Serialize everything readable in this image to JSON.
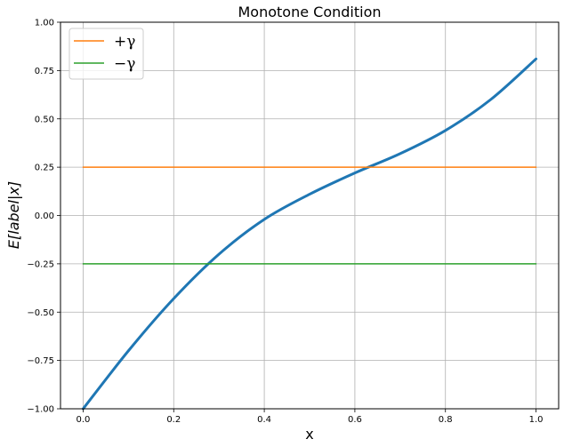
{
  "chart_data": {
    "type": "line",
    "title": "Monotone Condition",
    "xlabel": "x",
    "ylabel": "E[label|x]",
    "xlim": [
      -0.05,
      1.05
    ],
    "ylim": [
      -1.0,
      1.0
    ],
    "xticks": [
      0.0,
      0.2,
      0.4,
      0.6,
      0.8,
      1.0
    ],
    "xtick_labels": [
      "0.0",
      "0.2",
      "0.4",
      "0.6",
      "0.8",
      "1.0"
    ],
    "yticks": [
      -1.0,
      -0.75,
      -0.5,
      -0.25,
      0.0,
      0.25,
      0.5,
      0.75,
      1.0
    ],
    "ytick_labels": [
      "−1.00",
      "−0.75",
      "−0.50",
      "−0.25",
      "0.00",
      "0.25",
      "0.50",
      "0.75",
      "1.00"
    ],
    "grid": true,
    "legend_position": "top-left",
    "series": [
      {
        "color": "#1f77b4",
        "x": [
          0.0,
          0.1,
          0.2,
          0.3,
          0.4,
          0.5,
          0.6,
          0.7,
          0.8,
          0.9,
          1.0
        ],
        "y": [
          -1.0,
          -0.7,
          -0.43,
          -0.2,
          -0.02,
          0.11,
          0.22,
          0.32,
          0.44,
          0.6,
          0.81
        ]
      },
      {
        "name": "+γ",
        "color": "#ff7f0e",
        "x": [
          0.0,
          1.0
        ],
        "y": [
          0.25,
          0.25
        ]
      },
      {
        "name": "−γ",
        "color": "#2ca02c",
        "x": [
          0.0,
          1.0
        ],
        "y": [
          -0.25,
          -0.25
        ]
      }
    ]
  }
}
